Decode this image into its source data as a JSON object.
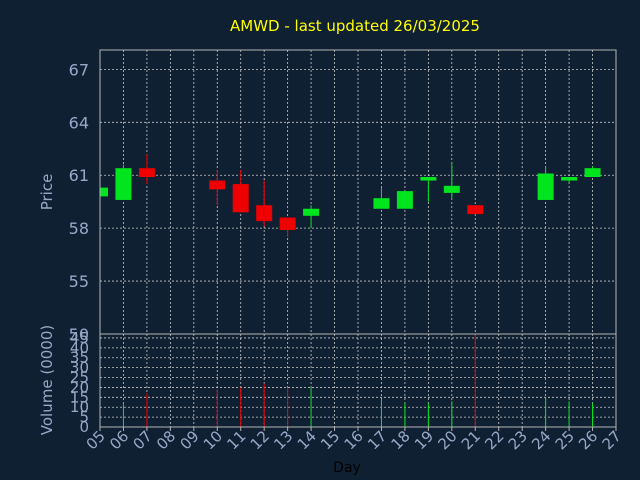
{
  "chart_data": {
    "type": "candlestick",
    "title": "AMWD - last updated 26/03/2025",
    "xlabel": "Day",
    "ylabel": "Price",
    "volume_label": "Volume (0000)",
    "x_ticks": [
      "05",
      "06",
      "07",
      "08",
      "09",
      "10",
      "11",
      "12",
      "13",
      "14",
      "15",
      "16",
      "17",
      "18",
      "19",
      "20",
      "21",
      "22",
      "23",
      "24",
      "25",
      "26",
      "27"
    ],
    "price_ticks": [
      67,
      64,
      61,
      58,
      55
    ],
    "price_axis_bottom_label": "50",
    "volume_ticks": [
      45,
      40,
      35,
      30,
      25,
      20,
      15,
      10,
      5,
      0
    ],
    "price_range": [
      52,
      68.1
    ],
    "volume_range": [
      0,
      47
    ],
    "x_range": [
      5,
      27
    ],
    "grid": true,
    "colors": {
      "background": "#102033",
      "up": "#00e51e",
      "down": "#ee0000",
      "title": "#ffff00",
      "axis_text": "#9aa8c8",
      "grid": "#c8c8c8",
      "frame": "#b4b4b4"
    },
    "candles": [
      {
        "day": 5,
        "open": 59.8,
        "close": 60.3,
        "high": 60.3,
        "low": 59.8,
        "volume": 10
      },
      {
        "day": 6,
        "open": 59.6,
        "close": 61.4,
        "high": 61.6,
        "low": 59.6,
        "volume": 12
      },
      {
        "day": 7,
        "open": 61.4,
        "close": 60.9,
        "high": 62.2,
        "low": 60.5,
        "volume": 17
      },
      {
        "day": 10,
        "open": 60.7,
        "close": 60.2,
        "high": 61.3,
        "low": 59.3,
        "volume": 19
      },
      {
        "day": 11,
        "open": 60.5,
        "close": 58.9,
        "high": 61.3,
        "low": 58.9,
        "volume": 20
      },
      {
        "day": 12,
        "open": 59.3,
        "close": 58.4,
        "high": 60.7,
        "low": 58.1,
        "volume": 22
      },
      {
        "day": 13,
        "open": 58.6,
        "close": 57.9,
        "high": 58.6,
        "low": 57.5,
        "volume": 20
      },
      {
        "day": 14,
        "open": 58.7,
        "close": 59.1,
        "high": 59.3,
        "low": 58.0,
        "volume": 20
      },
      {
        "day": 17,
        "open": 59.1,
        "close": 59.7,
        "high": 60.3,
        "low": 59.1,
        "volume": 14
      },
      {
        "day": 18,
        "open": 59.1,
        "close": 60.1,
        "high": 60.1,
        "low": 59.1,
        "volume": 12
      },
      {
        "day": 19,
        "open": 60.7,
        "close": 60.9,
        "high": 60.9,
        "low": 59.5,
        "volume": 12
      },
      {
        "day": 20,
        "open": 60.0,
        "close": 60.4,
        "high": 61.7,
        "low": 59.7,
        "volume": 13
      },
      {
        "day": 21,
        "open": 59.3,
        "close": 58.8,
        "high": 59.3,
        "low": 58.8,
        "volume": 47
      },
      {
        "day": 24,
        "open": 59.6,
        "close": 61.1,
        "high": 61.5,
        "low": 59.6,
        "volume": 15
      },
      {
        "day": 25,
        "open": 60.7,
        "close": 60.9,
        "high": 60.9,
        "low": 60.6,
        "volume": 13
      },
      {
        "day": 26,
        "open": 60.9,
        "close": 61.4,
        "high": 61.5,
        "low": 60.9,
        "volume": 12
      }
    ]
  }
}
